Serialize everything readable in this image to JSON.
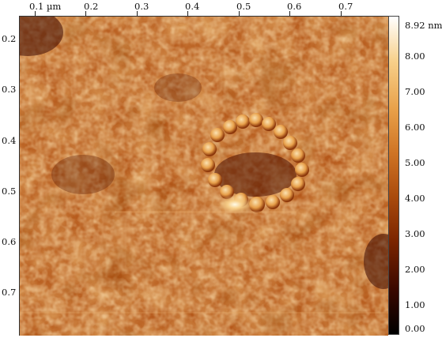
{
  "x_axis": {
    "unit": "µm",
    "first_label": "0.1 µm",
    "labels": [
      "0.2",
      "0.3",
      "0.4",
      "0.5",
      "0.6",
      "0.7"
    ]
  },
  "y_axis": {
    "labels": [
      "0.2",
      "0.3",
      "0.4",
      "0.5",
      "0.6",
      "0.7"
    ]
  },
  "colorbar": {
    "unit": "nm",
    "max_label": "8.92 nm",
    "labels": [
      "8.00",
      "7.00",
      "6.00",
      "5.00",
      "4.00",
      "3.00",
      "2.00",
      "1.00",
      "0.00"
    ],
    "colors": [
      "#000000",
      "#3a0800",
      "#7a2400",
      "#a94a0c",
      "#cf7424",
      "#e9a14a",
      "#f8d08a",
      "#ffffff"
    ]
  },
  "image": {
    "description_icon": "afm-height-map",
    "feature": "ring-shaped particle cluster near center"
  }
}
